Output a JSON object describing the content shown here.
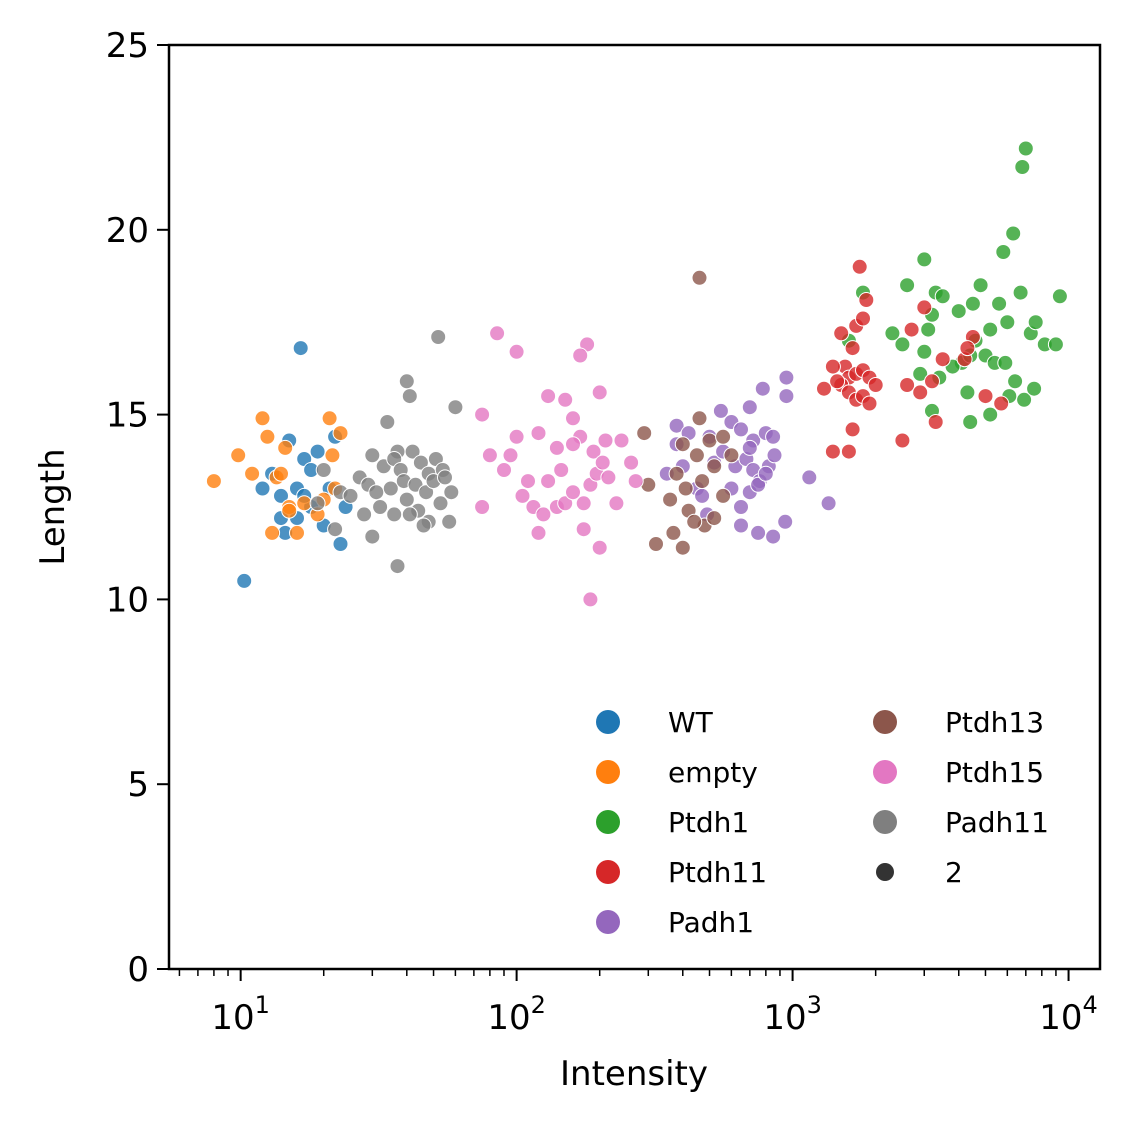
{
  "chart_data": {
    "type": "scatter",
    "xlabel": "Intensity",
    "ylabel": "Length",
    "xscale": "log",
    "xlim": [
      5.5,
      13000
    ],
    "ylim": [
      0,
      25
    ],
    "x_ticks": [
      10,
      100,
      1000,
      10000
    ],
    "x_tick_labels": [
      {
        "base": "10",
        "exp": "1"
      },
      {
        "base": "10",
        "exp": "2"
      },
      {
        "base": "10",
        "exp": "3"
      },
      {
        "base": "10",
        "exp": "4"
      }
    ],
    "y_ticks": [
      "0",
      "5",
      "10",
      "15",
      "20",
      "25"
    ],
    "grid": false,
    "legend_position": "lower-right",
    "legend_columns": 2,
    "size_legend": {
      "label": "2",
      "color": "#333333"
    },
    "series": [
      {
        "name": "WT",
        "color": "#1f77b4",
        "points": [
          [
            16.5,
            16.8
          ],
          [
            10.3,
            10.5
          ],
          [
            12,
            13.0
          ],
          [
            13,
            13.4
          ],
          [
            14,
            12.8
          ],
          [
            15,
            14.3
          ],
          [
            16,
            13.0
          ],
          [
            17,
            13.8
          ],
          [
            18,
            13.5
          ],
          [
            19,
            14.0
          ],
          [
            20,
            12.0
          ],
          [
            22,
            14.4
          ],
          [
            14.5,
            11.8
          ],
          [
            16,
            12.2
          ],
          [
            18,
            12.5
          ],
          [
            21,
            13.0
          ],
          [
            23,
            11.5
          ],
          [
            24,
            12.5
          ],
          [
            14,
            12.2
          ],
          [
            17,
            12.8
          ]
        ]
      },
      {
        "name": "empty",
        "color": "#ff7f0e",
        "points": [
          [
            8,
            13.2
          ],
          [
            9.8,
            13.9
          ],
          [
            11,
            13.4
          ],
          [
            12,
            14.9
          ],
          [
            12.5,
            14.4
          ],
          [
            13,
            11.8
          ],
          [
            13.5,
            13.3
          ],
          [
            14,
            13.4
          ],
          [
            15,
            12.5
          ],
          [
            16,
            11.8
          ],
          [
            17,
            12.6
          ],
          [
            20,
            12.7
          ],
          [
            21,
            14.9
          ],
          [
            21.5,
            13.9
          ],
          [
            23,
            14.5
          ],
          [
            22,
            13.0
          ],
          [
            15,
            12.4
          ],
          [
            14.5,
            14.1
          ],
          [
            19,
            12.3
          ]
        ]
      },
      {
        "name": "Ptdh1",
        "color": "#2ca02c",
        "points": [
          [
            7000,
            22.2
          ],
          [
            6800,
            21.7
          ],
          [
            6300,
            19.9
          ],
          [
            5800,
            19.4
          ],
          [
            3000,
            19.2
          ],
          [
            3300,
            18.3
          ],
          [
            2600,
            18.5
          ],
          [
            1800,
            18.3
          ],
          [
            1600,
            17.0
          ],
          [
            2300,
            17.2
          ],
          [
            2500,
            16.9
          ],
          [
            3100,
            17.3
          ],
          [
            3200,
            17.7
          ],
          [
            3500,
            18.2
          ],
          [
            4000,
            17.8
          ],
          [
            4500,
            18.0
          ],
          [
            4800,
            18.5
          ],
          [
            5200,
            17.3
          ],
          [
            5600,
            18.0
          ],
          [
            6000,
            17.5
          ],
          [
            6700,
            18.3
          ],
          [
            7300,
            17.2
          ],
          [
            7600,
            17.5
          ],
          [
            8200,
            16.9
          ],
          [
            9000,
            16.9
          ],
          [
            9300,
            18.2
          ],
          [
            3000,
            16.7
          ],
          [
            2900,
            16.1
          ],
          [
            3400,
            16.0
          ],
          [
            4100,
            16.4
          ],
          [
            4400,
            16.6
          ],
          [
            5000,
            16.6
          ],
          [
            5400,
            16.4
          ],
          [
            5900,
            16.4
          ],
          [
            6400,
            15.9
          ],
          [
            6900,
            15.4
          ],
          [
            7500,
            15.7
          ],
          [
            3200,
            15.1
          ],
          [
            4400,
            14.8
          ],
          [
            5200,
            15.0
          ],
          [
            3800,
            16.3
          ],
          [
            4600,
            17.0
          ],
          [
            6100,
            15.5
          ],
          [
            4300,
            15.6
          ]
        ]
      },
      {
        "name": "Ptdh11",
        "color": "#d62728",
        "points": [
          [
            1750,
            19.0
          ],
          [
            1850,
            18.1
          ],
          [
            1500,
            17.2
          ],
          [
            1700,
            17.4
          ],
          [
            1800,
            17.6
          ],
          [
            1650,
            16.8
          ],
          [
            1550,
            16.3
          ],
          [
            1600,
            16.0
          ],
          [
            1700,
            16.1
          ],
          [
            1800,
            16.2
          ],
          [
            1900,
            16.0
          ],
          [
            1500,
            15.8
          ],
          [
            1600,
            15.6
          ],
          [
            1700,
            15.4
          ],
          [
            1800,
            15.5
          ],
          [
            1900,
            15.3
          ],
          [
            2000,
            15.8
          ],
          [
            1400,
            16.3
          ],
          [
            1450,
            15.9
          ],
          [
            1300,
            15.7
          ],
          [
            1650,
            14.6
          ],
          [
            1600,
            14.0
          ],
          [
            1400,
            14.0
          ],
          [
            2700,
            17.3
          ],
          [
            3000,
            17.9
          ],
          [
            3500,
            16.5
          ],
          [
            4200,
            16.5
          ],
          [
            4500,
            17.1
          ],
          [
            2600,
            15.8
          ],
          [
            2900,
            15.6
          ],
          [
            3200,
            15.9
          ],
          [
            3300,
            14.8
          ],
          [
            2500,
            14.3
          ],
          [
            4300,
            16.8
          ],
          [
            5000,
            15.5
          ],
          [
            5700,
            15.3
          ]
        ]
      },
      {
        "name": "Padh1",
        "color": "#9467bd",
        "points": [
          [
            1150,
            13.3
          ],
          [
            1350,
            12.6
          ],
          [
            950,
            16.0
          ],
          [
            950,
            15.5
          ],
          [
            780,
            15.7
          ],
          [
            700,
            15.2
          ],
          [
            550,
            15.1
          ],
          [
            600,
            14.8
          ],
          [
            650,
            14.6
          ],
          [
            720,
            14.3
          ],
          [
            800,
            14.5
          ],
          [
            850,
            14.4
          ],
          [
            500,
            14.4
          ],
          [
            520,
            13.7
          ],
          [
            560,
            14.0
          ],
          [
            620,
            13.6
          ],
          [
            680,
            13.8
          ],
          [
            720,
            13.5
          ],
          [
            760,
            13.2
          ],
          [
            820,
            13.6
          ],
          [
            860,
            13.9
          ],
          [
            400,
            13.6
          ],
          [
            450,
            13.0
          ],
          [
            470,
            12.8
          ],
          [
            490,
            12.3
          ],
          [
            600,
            13.0
          ],
          [
            650,
            12.5
          ],
          [
            700,
            12.9
          ],
          [
            750,
            13.1
          ],
          [
            800,
            13.4
          ],
          [
            380,
            14.7
          ],
          [
            380,
            14.2
          ],
          [
            420,
            14.5
          ],
          [
            940,
            12.1
          ],
          [
            850,
            11.7
          ],
          [
            650,
            12.0
          ],
          [
            750,
            11.8
          ],
          [
            350,
            13.4
          ],
          [
            700,
            14.1
          ]
        ]
      },
      {
        "name": "Ptdh13",
        "color": "#8c564b",
        "points": [
          [
            460,
            18.7
          ],
          [
            290,
            14.5
          ],
          [
            460,
            14.9
          ],
          [
            400,
            14.2
          ],
          [
            450,
            13.9
          ],
          [
            500,
            14.3
          ],
          [
            560,
            14.4
          ],
          [
            380,
            13.4
          ],
          [
            410,
            13.0
          ],
          [
            470,
            13.2
          ],
          [
            520,
            13.6
          ],
          [
            560,
            12.8
          ],
          [
            300,
            13.1
          ],
          [
            360,
            12.7
          ],
          [
            420,
            12.4
          ],
          [
            480,
            12.0
          ],
          [
            520,
            12.2
          ],
          [
            600,
            13.9
          ],
          [
            320,
            11.5
          ],
          [
            370,
            11.8
          ],
          [
            400,
            11.4
          ],
          [
            440,
            12.1
          ]
        ]
      },
      {
        "name": "Ptdh15",
        "color": "#e377c2",
        "points": [
          [
            85,
            17.2
          ],
          [
            100,
            16.7
          ],
          [
            180,
            16.9
          ],
          [
            170,
            16.6
          ],
          [
            75,
            15.0
          ],
          [
            80,
            13.9
          ],
          [
            95,
            13.9
          ],
          [
            100,
            14.4
          ],
          [
            110,
            13.2
          ],
          [
            120,
            14.5
          ],
          [
            130,
            15.5
          ],
          [
            150,
            15.4
          ],
          [
            160,
            14.9
          ],
          [
            140,
            14.1
          ],
          [
            170,
            14.4
          ],
          [
            190,
            14.0
          ],
          [
            200,
            15.6
          ],
          [
            210,
            14.3
          ],
          [
            240,
            14.3
          ],
          [
            260,
            13.7
          ],
          [
            90,
            13.5
          ],
          [
            105,
            12.8
          ],
          [
            115,
            12.5
          ],
          [
            125,
            12.3
          ],
          [
            140,
            12.5
          ],
          [
            150,
            12.6
          ],
          [
            160,
            12.9
          ],
          [
            175,
            12.6
          ],
          [
            185,
            13.1
          ],
          [
            195,
            13.4
          ],
          [
            205,
            13.7
          ],
          [
            215,
            13.3
          ],
          [
            230,
            12.6
          ],
          [
            270,
            13.2
          ],
          [
            120,
            11.8
          ],
          [
            175,
            11.9
          ],
          [
            200,
            11.4
          ],
          [
            185,
            10.0
          ],
          [
            75,
            12.5
          ],
          [
            130,
            13.2
          ],
          [
            145,
            13.5
          ],
          [
            160,
            14.2
          ]
        ]
      },
      {
        "name": "Padh11",
        "color": "#7f7f7f",
        "points": [
          [
            52,
            17.1
          ],
          [
            40,
            15.9
          ],
          [
            41,
            15.5
          ],
          [
            34,
            14.8
          ],
          [
            60,
            15.2
          ],
          [
            37,
            14.0
          ],
          [
            42,
            14.0
          ],
          [
            30,
            13.9
          ],
          [
            33,
            13.6
          ],
          [
            36,
            13.8
          ],
          [
            38,
            13.5
          ],
          [
            45,
            13.7
          ],
          [
            48,
            13.4
          ],
          [
            51,
            13.8
          ],
          [
            54,
            13.5
          ],
          [
            27,
            13.3
          ],
          [
            29,
            13.1
          ],
          [
            31,
            12.9
          ],
          [
            35,
            13.0
          ],
          [
            39,
            13.2
          ],
          [
            43,
            13.1
          ],
          [
            47,
            12.9
          ],
          [
            50,
            13.2
          ],
          [
            55,
            13.3
          ],
          [
            58,
            12.9
          ],
          [
            20,
            13.5
          ],
          [
            23,
            12.9
          ],
          [
            25,
            12.8
          ],
          [
            28,
            12.3
          ],
          [
            32,
            12.5
          ],
          [
            36,
            12.3
          ],
          [
            40,
            12.7
          ],
          [
            44,
            12.4
          ],
          [
            48,
            12.1
          ],
          [
            53,
            12.6
          ],
          [
            57,
            12.1
          ],
          [
            30,
            11.7
          ],
          [
            37,
            10.9
          ],
          [
            22,
            11.9
          ],
          [
            46,
            12.0
          ],
          [
            19,
            12.6
          ],
          [
            41,
            12.3
          ]
        ]
      }
    ]
  }
}
